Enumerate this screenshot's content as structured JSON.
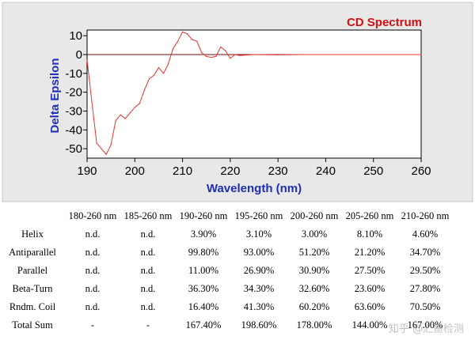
{
  "chart_data": {
    "type": "line",
    "title": "CD Spectrum",
    "xlabel": "Wavelength (nm)",
    "ylabel": "Delta Epsilon",
    "xlim": [
      190,
      260
    ],
    "ylim": [
      -55,
      13
    ],
    "xticks": [
      190,
      200,
      210,
      220,
      230,
      240,
      250,
      260
    ],
    "yticks": [
      10,
      0,
      -10,
      -20,
      -30,
      -40,
      -50
    ],
    "grid": false,
    "zero_line": true,
    "colors": {
      "line": "#e8322c",
      "zero_line": "#6b0f0f",
      "title": "#d01010",
      "axis_title": "#1f2fb8"
    },
    "series": [
      {
        "x": [
          190,
          191,
          192,
          193,
          194,
          195,
          196,
          197,
          198,
          199,
          200,
          201,
          202,
          203,
          204,
          205,
          206,
          207,
          208,
          209,
          210,
          211,
          212,
          213,
          214,
          215,
          216,
          217,
          218,
          219,
          220,
          221,
          222,
          223,
          225,
          230,
          235,
          240,
          250,
          260
        ],
        "y": [
          -3,
          -25,
          -47,
          -50,
          -53,
          -48,
          -35,
          -32,
          -34,
          -31,
          -28,
          -26,
          -19,
          -13,
          -11,
          -7,
          -10,
          -5,
          3,
          7,
          12,
          11,
          8,
          7,
          1,
          -1,
          -1.5,
          -1,
          4,
          2,
          -2,
          0,
          -0.5,
          -0.3,
          0,
          -0.2,
          0,
          0,
          0,
          0
        ]
      }
    ]
  },
  "table": {
    "columns": [
      "180-260 nm",
      "185-260 nm",
      "190-260 nm",
      "195-260 nm",
      "200-260 nm",
      "205-260 nm",
      "210-260 nm"
    ],
    "rows": [
      {
        "label": "Helix",
        "values": [
          "n.d.",
          "n.d.",
          "3.90%",
          "3.10%",
          "3.00%",
          "8.10%",
          "4.60%"
        ]
      },
      {
        "label": "Antiparallel",
        "values": [
          "n.d.",
          "n.d.",
          "99.80%",
          "93.00%",
          "51.20%",
          "21.20%",
          "34.70%"
        ]
      },
      {
        "label": "Parallel",
        "values": [
          "n.d.",
          "n.d.",
          "11.00%",
          "26.90%",
          "30.90%",
          "27.50%",
          "29.50%"
        ]
      },
      {
        "label": "Beta-Turn",
        "values": [
          "n.d.",
          "n.d.",
          "36.30%",
          "34.30%",
          "32.60%",
          "23.60%",
          "27.80%"
        ]
      },
      {
        "label": "Rndm. Coil",
        "values": [
          "n.d.",
          "n.d.",
          "16.40%",
          "41.30%",
          "60.20%",
          "63.60%",
          "70.50%"
        ]
      },
      {
        "label": "Total Sum",
        "values": [
          "-",
          "-",
          "167.40%",
          "198.60%",
          "178.00%",
          "144.00%",
          "167.00%"
        ]
      }
    ]
  },
  "watermark": "知乎 @汇鱼检测"
}
